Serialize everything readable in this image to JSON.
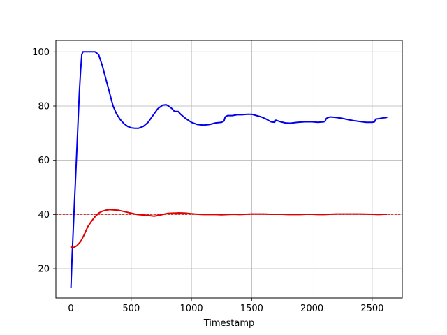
{
  "chart_data": {
    "type": "line",
    "title": "",
    "xlabel": "Timestamp",
    "ylabel": "",
    "xlim": [
      -125,
      2750
    ],
    "ylim": [
      9.2,
      104.2
    ],
    "grid": true,
    "legend": "none",
    "x_ticks": [
      0,
      500,
      1000,
      1500,
      2000,
      2500
    ],
    "x_tick_labels": [
      "0",
      "500",
      "1000",
      "1500",
      "2000",
      "2500"
    ],
    "y_ticks": [
      20,
      40,
      60,
      80,
      100
    ],
    "y_tick_labels": [
      "20",
      "40",
      "60",
      "80",
      "100"
    ],
    "reference_lines": [
      {
        "y": 40,
        "color": "#e00000",
        "style": "dashed"
      }
    ],
    "series": [
      {
        "color": "#0000ee",
        "points": [
          [
            0,
            13
          ],
          [
            10,
            25
          ],
          [
            20,
            35
          ],
          [
            30,
            45
          ],
          [
            40,
            55
          ],
          [
            50,
            65
          ],
          [
            60,
            75
          ],
          [
            70,
            85
          ],
          [
            80,
            93
          ],
          [
            90,
            99
          ],
          [
            100,
            100
          ],
          [
            150,
            100
          ],
          [
            200,
            100
          ],
          [
            230,
            99
          ],
          [
            260,
            95
          ],
          [
            290,
            90
          ],
          [
            320,
            85
          ],
          [
            350,
            80
          ],
          [
            380,
            77
          ],
          [
            410,
            75
          ],
          [
            440,
            73.5
          ],
          [
            470,
            72.5
          ],
          [
            500,
            72
          ],
          [
            530,
            71.8
          ],
          [
            560,
            71.8
          ],
          [
            600,
            72.5
          ],
          [
            640,
            74
          ],
          [
            680,
            76.5
          ],
          [
            720,
            79
          ],
          [
            760,
            80.3
          ],
          [
            790,
            80.5
          ],
          [
            810,
            80
          ],
          [
            840,
            79
          ],
          [
            860,
            78
          ],
          [
            890,
            78
          ],
          [
            910,
            77
          ],
          [
            950,
            75.5
          ],
          [
            1000,
            74
          ],
          [
            1050,
            73.2
          ],
          [
            1100,
            73
          ],
          [
            1150,
            73.2
          ],
          [
            1200,
            73.8
          ],
          [
            1250,
            74
          ],
          [
            1270,
            74.5
          ],
          [
            1280,
            76
          ],
          [
            1300,
            76.5
          ],
          [
            1340,
            76.5
          ],
          [
            1380,
            76.8
          ],
          [
            1420,
            76.8
          ],
          [
            1460,
            77
          ],
          [
            1500,
            77
          ],
          [
            1540,
            76.5
          ],
          [
            1580,
            76
          ],
          [
            1620,
            75.2
          ],
          [
            1660,
            74.2
          ],
          [
            1690,
            74
          ],
          [
            1700,
            74.8
          ],
          [
            1740,
            74.2
          ],
          [
            1780,
            73.8
          ],
          [
            1820,
            73.7
          ],
          [
            1880,
            74
          ],
          [
            1940,
            74.2
          ],
          [
            2000,
            74.2
          ],
          [
            2050,
            74
          ],
          [
            2100,
            74.2
          ],
          [
            2110,
            74.5
          ],
          [
            2120,
            75.5
          ],
          [
            2150,
            76
          ],
          [
            2200,
            75.8
          ],
          [
            2250,
            75.5
          ],
          [
            2300,
            75
          ],
          [
            2350,
            74.6
          ],
          [
            2400,
            74.3
          ],
          [
            2450,
            74
          ],
          [
            2500,
            74
          ],
          [
            2520,
            74.2
          ],
          [
            2530,
            75.2
          ],
          [
            2560,
            75.4
          ],
          [
            2600,
            75.7
          ],
          [
            2620,
            75.8
          ]
        ]
      },
      {
        "color": "#e00000",
        "points": [
          [
            0,
            28
          ],
          [
            20,
            27.8
          ],
          [
            50,
            28.5
          ],
          [
            80,
            30
          ],
          [
            110,
            32.5
          ],
          [
            140,
            35.5
          ],
          [
            170,
            37.5
          ],
          [
            200,
            39.2
          ],
          [
            230,
            40.5
          ],
          [
            260,
            41.2
          ],
          [
            290,
            41.6
          ],
          [
            320,
            41.8
          ],
          [
            350,
            41.7
          ],
          [
            390,
            41.6
          ],
          [
            430,
            41.2
          ],
          [
            470,
            40.8
          ],
          [
            510,
            40.4
          ],
          [
            550,
            40
          ],
          [
            600,
            39.8
          ],
          [
            650,
            39.6
          ],
          [
            690,
            39.4
          ],
          [
            720,
            39.6
          ],
          [
            760,
            40
          ],
          [
            800,
            40.4
          ],
          [
            850,
            40.5
          ],
          [
            900,
            40.6
          ],
          [
            950,
            40.5
          ],
          [
            1000,
            40.3
          ],
          [
            1050,
            40.1
          ],
          [
            1100,
            40
          ],
          [
            1150,
            40
          ],
          [
            1200,
            40
          ],
          [
            1250,
            39.9
          ],
          [
            1300,
            40
          ],
          [
            1350,
            40.1
          ],
          [
            1400,
            40
          ],
          [
            1450,
            40.1
          ],
          [
            1500,
            40.2
          ],
          [
            1550,
            40.2
          ],
          [
            1600,
            40.2
          ],
          [
            1650,
            40.1
          ],
          [
            1700,
            40.1
          ],
          [
            1750,
            40.1
          ],
          [
            1800,
            40
          ],
          [
            1850,
            40
          ],
          [
            1900,
            40
          ],
          [
            1950,
            40.1
          ],
          [
            2000,
            40.1
          ],
          [
            2050,
            40
          ],
          [
            2100,
            40
          ],
          [
            2150,
            40.1
          ],
          [
            2200,
            40.2
          ],
          [
            2300,
            40.2
          ],
          [
            2400,
            40.2
          ],
          [
            2500,
            40.1
          ],
          [
            2550,
            40
          ],
          [
            2600,
            40.1
          ],
          [
            2620,
            40.1
          ]
        ]
      }
    ]
  }
}
